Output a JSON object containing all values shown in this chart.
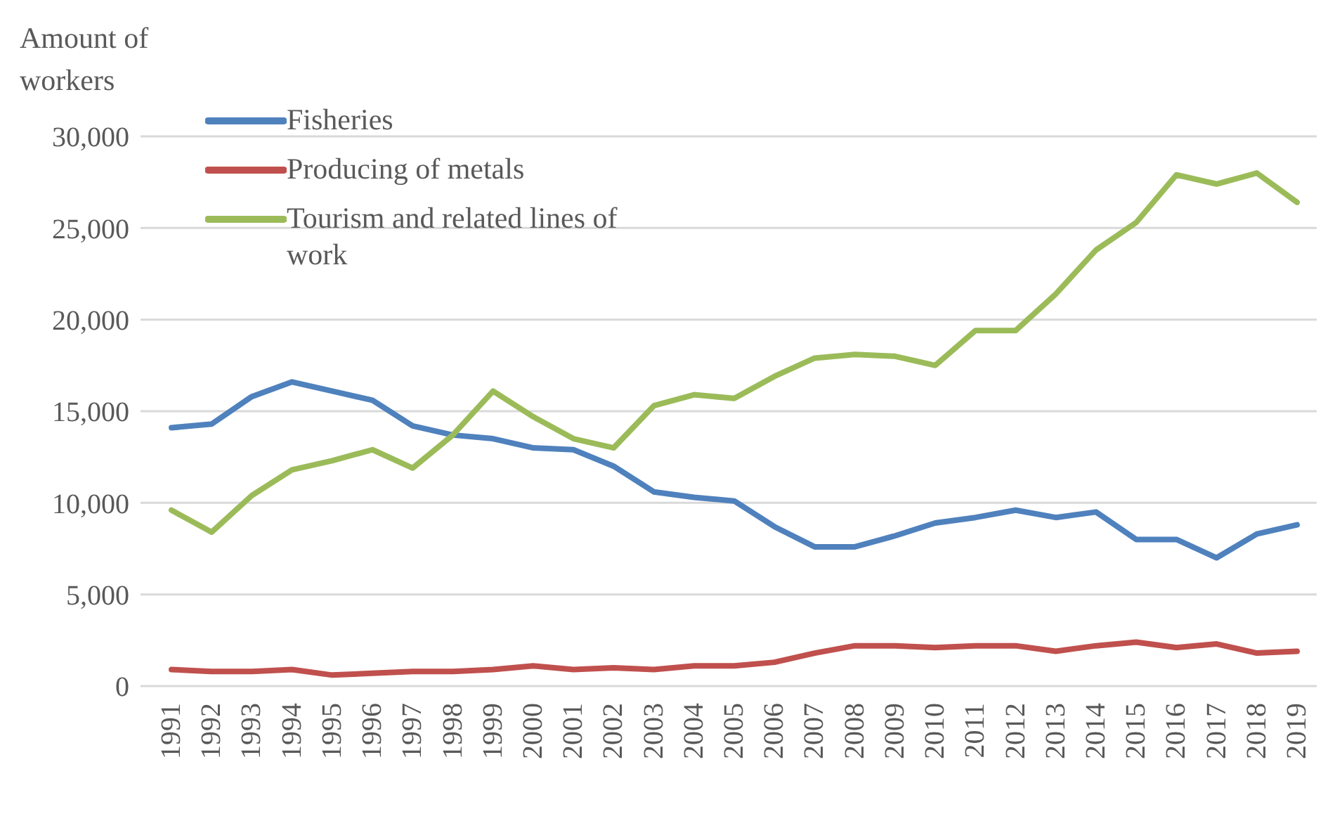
{
  "chart_data": {
    "type": "line",
    "ylabel": "Amount of workers",
    "categories": [
      "1991",
      "1992",
      "1993",
      "1994",
      "1995",
      "1996",
      "1997",
      "1998",
      "1999",
      "2000",
      "2001",
      "2002",
      "2003",
      "2004",
      "2005",
      "2006",
      "2007",
      "2008",
      "2009",
      "2010",
      "2011",
      "2012",
      "2013",
      "2014",
      "2015",
      "2016",
      "2017",
      "2018",
      "2019"
    ],
    "series": [
      {
        "name": "Fisheries",
        "color": "#4f81bd",
        "values": [
          14100,
          14300,
          15800,
          16600,
          16100,
          15600,
          14200,
          13700,
          13500,
          13000,
          12900,
          12000,
          10600,
          10300,
          10100,
          8700,
          7600,
          7600,
          8200,
          8900,
          9200,
          9600,
          9200,
          9500,
          8000,
          8000,
          7000,
          8300,
          8800
        ]
      },
      {
        "name": "Producing of metals",
        "color": "#c0504d",
        "values": [
          900,
          800,
          800,
          900,
          600,
          700,
          800,
          800,
          900,
          1100,
          900,
          1000,
          900,
          1100,
          1100,
          1300,
          1800,
          2200,
          2200,
          2100,
          2200,
          2200,
          1900,
          2200,
          2400,
          2100,
          2300,
          1800,
          1900
        ]
      },
      {
        "name": "Tourism and related lines of work",
        "color": "#9bbb59",
        "values": [
          9600,
          8400,
          10400,
          11800,
          12300,
          12900,
          11900,
          13700,
          16100,
          14700,
          13500,
          13000,
          15300,
          15900,
          15700,
          16900,
          17900,
          18100,
          18000,
          17500,
          19400,
          19400,
          21400,
          23800,
          25300,
          27900,
          27400,
          28000,
          26400
        ]
      }
    ],
    "ylim": [
      0,
      30000
    ],
    "yticks": [
      0,
      {
        "value": 5000,
        "label": "5,000"
      },
      {
        "value": 10000,
        "label": "10,000"
      },
      {
        "value": 15000,
        "label": "15,000"
      },
      {
        "value": 20000,
        "label": "20,000"
      },
      {
        "value": 25000,
        "label": "25,000"
      },
      {
        "value": 30000,
        "label": "30,000"
      }
    ],
    "grid": "y",
    "legend": "top left",
    "marker": "none",
    "line_style": "solid"
  }
}
